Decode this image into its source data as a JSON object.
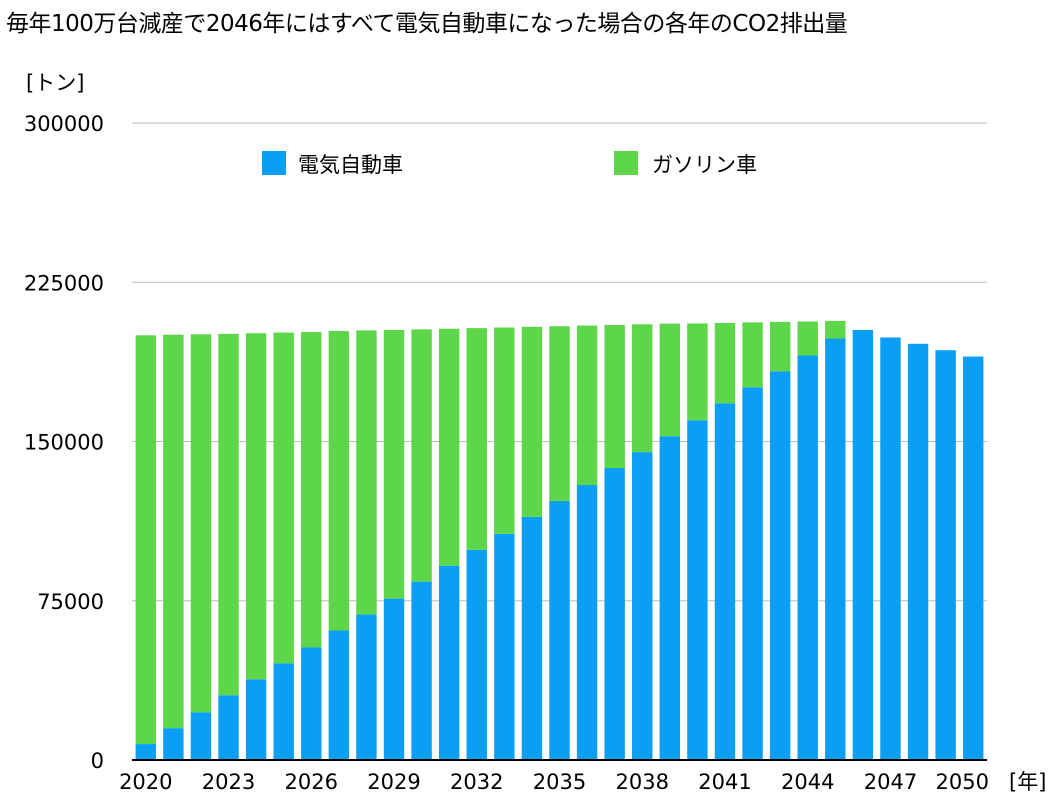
{
  "chart_data": {
    "type": "bar",
    "stacked": true,
    "title": "毎年100万台減産で2046年にはすべて電気自動車になった場合の各年のCO2排出量",
    "ylabel": "[トン]",
    "xlabel": "[年]",
    "ylim": [
      0,
      300000
    ],
    "yticks": [
      "300000",
      "225000",
      "150000",
      "75000",
      "0"
    ],
    "ytick_values": [
      300000,
      225000,
      150000,
      75000,
      0
    ],
    "grid": true,
    "legend_position": "top",
    "x_tick_labels": [
      "2020",
      "2023",
      "2026",
      "2029",
      "2032",
      "2035",
      "2038",
      "2041",
      "2044",
      "2047",
      "2050"
    ],
    "categories": [
      "2020",
      "2021",
      "2022",
      "2023",
      "2024",
      "2025",
      "2026",
      "2027",
      "2028",
      "2029",
      "2030",
      "2031",
      "2032",
      "2033",
      "2034",
      "2035",
      "2036",
      "2037",
      "2038",
      "2039",
      "2040",
      "2041",
      "2042",
      "2043",
      "2044",
      "2045",
      "2046",
      "2047",
      "2048",
      "2049",
      "2050"
    ],
    "series": [
      {
        "name": "電気自動車",
        "color": "#0a9ef5",
        "values": [
          7500,
          15000,
          22500,
          30500,
          38000,
          45500,
          53000,
          61000,
          68500,
          76000,
          84000,
          91500,
          99000,
          106500,
          114500,
          122000,
          129500,
          137500,
          145000,
          152500,
          160000,
          168000,
          175500,
          183000,
          190500,
          198500,
          202500,
          199000,
          196000,
          193000,
          190000
        ]
      },
      {
        "name": "ガソリン車",
        "color": "#5dd64a",
        "values": [
          192500,
          185300,
          178000,
          170200,
          163000,
          155800,
          148600,
          141000,
          133800,
          126500,
          118800,
          111600,
          104400,
          97200,
          89500,
          82300,
          75100,
          67400,
          60200,
          53000,
          45600,
          37800,
          30600,
          23300,
          16000,
          8300,
          0,
          0,
          0,
          0,
          0
        ]
      }
    ]
  }
}
